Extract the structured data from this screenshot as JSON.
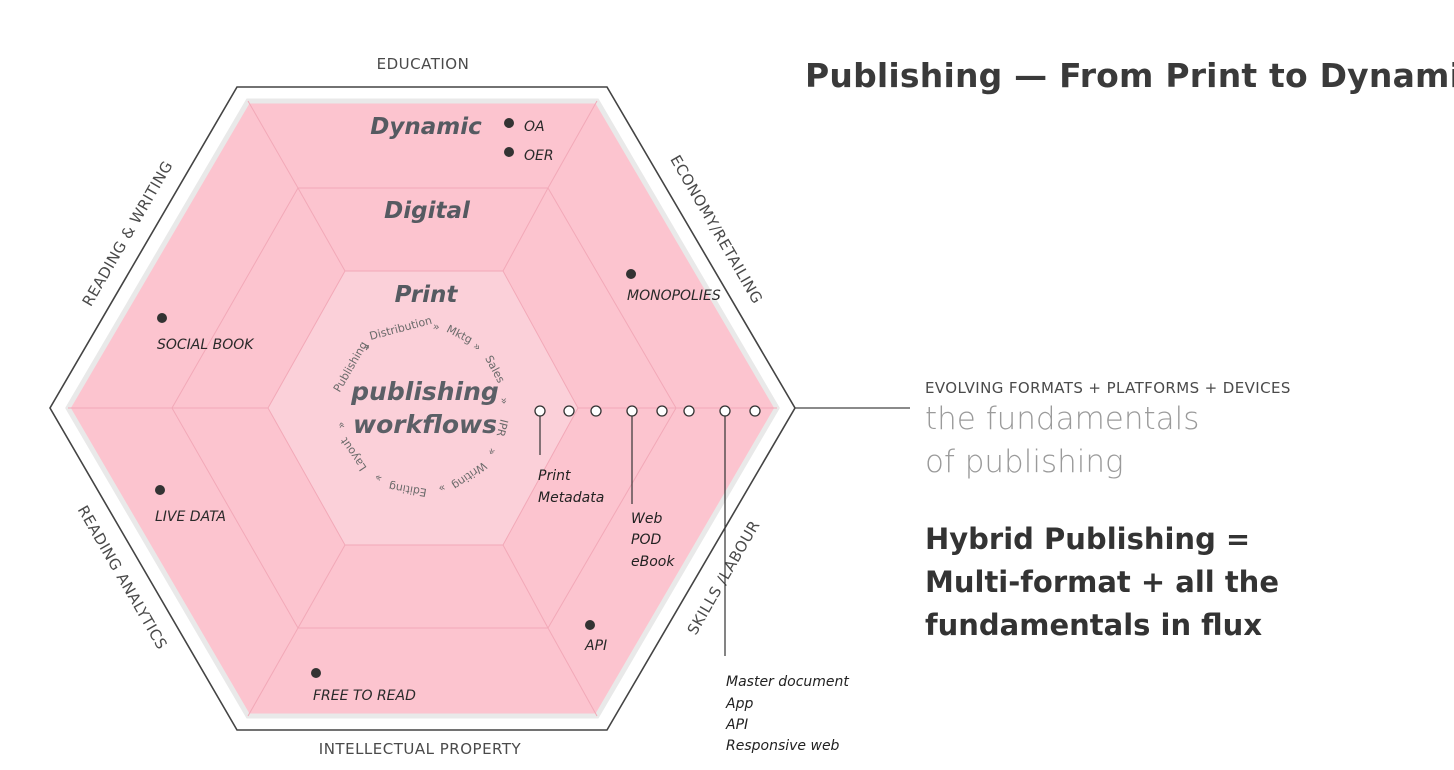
{
  "title": "Publishing — From Print to Dynamic",
  "side_labels": {
    "top": "EDUCATION",
    "top_right": "ECONOMY/RETAILING",
    "bottom_right": "SKILLS /LABOUR",
    "bottom": "INTELLECTUAL PROPERTY",
    "bottom_left": "READING ANALYTICS",
    "top_left": "READING & WRITING"
  },
  "rings": {
    "outer": "Dynamic",
    "middle": "Digital",
    "inner": "Print"
  },
  "core": {
    "line1": "publishing",
    "line2": "workflows",
    "steps": [
      "Publishing",
      "»",
      "Distribution",
      "»",
      "Mktg",
      "»",
      "Sales",
      "»",
      "IPR",
      "»",
      "Writing",
      "»",
      "Editing",
      "»",
      "Layout",
      "»"
    ]
  },
  "items": {
    "oa": "OA",
    "oer": "OER",
    "monopolies": "MONOPOLIES",
    "social_book": "SOCIAL BOOK",
    "live_data": "LIVE DATA",
    "api": "API",
    "free_to_read": "FREE TO  READ"
  },
  "outputs": {
    "print": [
      "Print",
      "Metadata"
    ],
    "web": [
      "Web",
      "POD",
      "eBook"
    ],
    "master": [
      "Master document",
      "App",
      "API",
      "Responsive web"
    ]
  },
  "evolving": "EVOLVING FORMATS + PLATFORMS + DEVICES",
  "fundamentals": [
    "the fundamentals",
    "of publishing"
  ],
  "hybrid": [
    "Hybrid Publishing =",
    "Multi-format + all the",
    "fundamentals in flux"
  ],
  "colors": {
    "pink": "#fcc4cf",
    "inner_pink": "#fbd0d9",
    "outline": "#333333",
    "title": "#3a3a3a"
  }
}
